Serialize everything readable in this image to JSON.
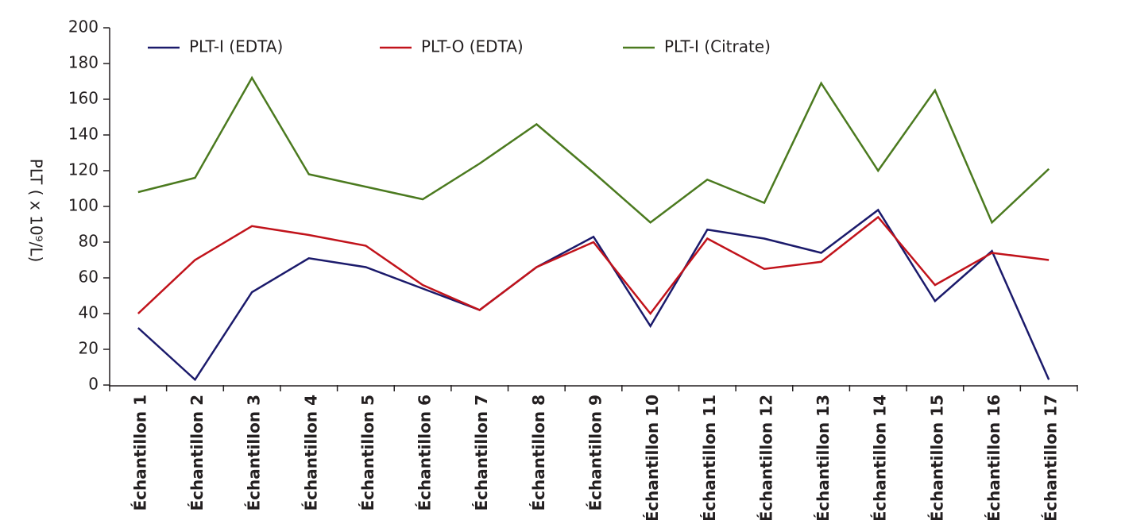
{
  "chart_data": {
    "type": "line",
    "y_label": "PLT ( x 10⁹/L)",
    "categories": [
      "Échantillon 1",
      "Échantillon 2",
      "Échantillon 3",
      "Échantillon 4",
      "Échantillon 5",
      "Échantillon 6",
      "Échantillon 7",
      "Échantillon 8",
      "Échantillon 9",
      "Échantillon 10",
      "Échantillon 11",
      "Échantillon 12",
      "Échantillon 13",
      "Échantillon 14",
      "Échantillon 15",
      "Échantillon 16",
      "Échantillon 17"
    ],
    "series": [
      {
        "name": "PLT-I (EDTA)",
        "color": "#1b1a6b",
        "values": [
          32,
          3,
          52,
          71,
          66,
          54,
          42,
          66,
          83,
          33,
          87,
          82,
          74,
          98,
          47,
          75,
          3
        ]
      },
      {
        "name": "PLT-O (EDTA)",
        "color": "#c1131b",
        "values": [
          40,
          70,
          89,
          84,
          78,
          56,
          42,
          66,
          80,
          40,
          82,
          65,
          69,
          94,
          56,
          74,
          70
        ]
      },
      {
        "name": "PLT-I (Citrate)",
        "color": "#4b7a1f",
        "values": [
          108,
          116,
          172,
          118,
          111,
          104,
          124,
          146,
          119,
          91,
          115,
          102,
          169,
          120,
          165,
          91,
          121
        ]
      }
    ],
    "ylim": [
      0,
      200
    ],
    "yticks": [
      0,
      20,
      40,
      60,
      80,
      100,
      120,
      140,
      160,
      180,
      200
    ],
    "grid": false,
    "legend": "top"
  }
}
